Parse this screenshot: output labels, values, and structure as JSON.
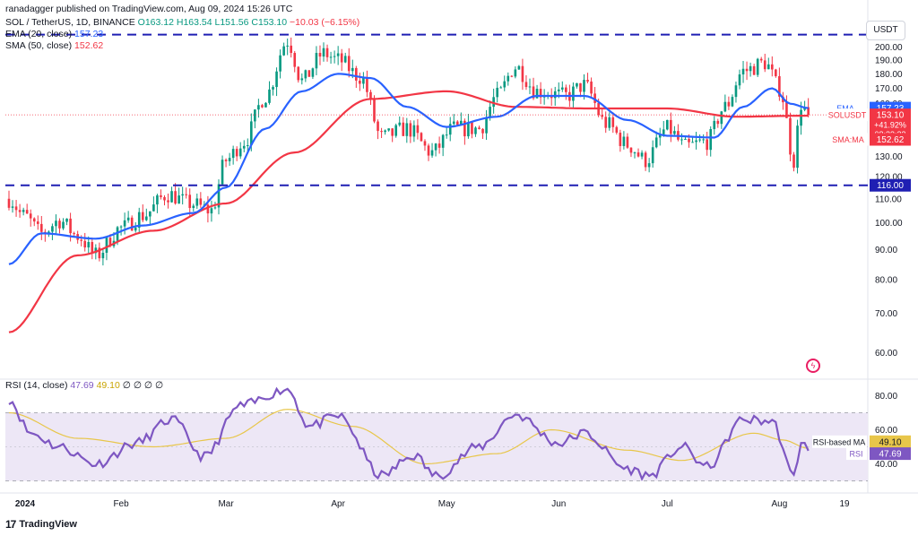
{
  "header": {
    "published": "ranadagger published on TradingView.com, Aug 09, 2024 15:26 UTC",
    "symbol": "SOL / TetherUS, 1D, BINANCE",
    "ohlc": {
      "o_label": "O",
      "o": "163.12",
      "h_label": "H",
      "h": "163.54",
      "l_label": "L",
      "l": "151.56",
      "c_label": "C",
      "c": "153.10",
      "change": "−10.03 (−6.15%)"
    },
    "ema_label": "EMA (20, close)",
    "ema_value": "157.23",
    "sma_label": "SMA (50, close)",
    "sma_value": "152.62"
  },
  "rsi_legend": {
    "label": "RSI (14, close)",
    "rsi": "47.69",
    "ma": "49.10",
    "extra": "∅ ∅ ∅ ∅"
  },
  "currency_button": "USDT",
  "footer": {
    "brand": "TradingView",
    "logo": "17"
  },
  "colors": {
    "up": "#089981",
    "down": "#f23645",
    "ema": "#2962ff",
    "sma": "#f23645",
    "rsi": "#7e57c2",
    "rsi_ma": "#e8c64a",
    "level_line": "#1f1fb3",
    "rsi_band": "#ede7f6"
  },
  "chart_data": [
    {
      "type": "candlestick",
      "title": "SOL / TetherUS, 1D, BINANCE",
      "x_ticks": [
        "2024",
        "Feb",
        "Mar",
        "Apr",
        "May",
        "Jun",
        "Jul",
        "Aug",
        "19"
      ],
      "y_ticks": [
        60,
        70,
        80,
        90,
        100,
        110,
        120,
        130,
        140,
        150,
        160,
        170,
        180,
        190,
        200
      ],
      "ylim": [
        55,
        212
      ],
      "scale": "log",
      "horizontal_levels": [
        {
          "value": 210,
          "label": ""
        },
        {
          "value": 116,
          "label": "116.00"
        }
      ],
      "price_labels": [
        {
          "name": "EMA",
          "value": "157.23"
        },
        {
          "name": "SOLUSDT",
          "value": "153.10",
          "change": "+41.92%",
          "countdown": "08:33:22"
        },
        {
          "name": "SMA:MA",
          "value": "152.62"
        }
      ],
      "close_anchors": [
        {
          "date": "2024-01-01",
          "close": 110
        },
        {
          "date": "2024-01-05",
          "close": 103
        },
        {
          "date": "2024-01-10",
          "close": 96
        },
        {
          "date": "2024-01-15",
          "close": 101
        },
        {
          "date": "2024-01-20",
          "close": 95
        },
        {
          "date": "2024-01-25",
          "close": 88
        },
        {
          "date": "2024-02-01",
          "close": 98
        },
        {
          "date": "2024-02-07",
          "close": 103
        },
        {
          "date": "2024-02-14",
          "close": 112
        },
        {
          "date": "2024-02-20",
          "close": 108
        },
        {
          "date": "2024-02-26",
          "close": 105
        },
        {
          "date": "2024-03-01",
          "close": 128
        },
        {
          "date": "2024-03-06",
          "close": 138
        },
        {
          "date": "2024-03-12",
          "close": 165
        },
        {
          "date": "2024-03-18",
          "close": 205
        },
        {
          "date": "2024-03-22",
          "close": 175
        },
        {
          "date": "2024-03-28",
          "close": 195
        },
        {
          "date": "2024-04-01",
          "close": 190
        },
        {
          "date": "2024-04-07",
          "close": 178
        },
        {
          "date": "2024-04-13",
          "close": 140
        },
        {
          "date": "2024-04-20",
          "close": 145
        },
        {
          "date": "2024-04-27",
          "close": 132
        },
        {
          "date": "2024-05-03",
          "close": 145
        },
        {
          "date": "2024-05-10",
          "close": 145
        },
        {
          "date": "2024-05-15",
          "close": 165
        },
        {
          "date": "2024-05-20",
          "close": 185
        },
        {
          "date": "2024-05-26",
          "close": 168
        },
        {
          "date": "2024-06-03",
          "close": 165
        },
        {
          "date": "2024-06-08",
          "close": 172
        },
        {
          "date": "2024-06-14",
          "close": 148
        },
        {
          "date": "2024-06-20",
          "close": 136
        },
        {
          "date": "2024-06-25",
          "close": 128
        },
        {
          "date": "2024-07-01",
          "close": 145
        },
        {
          "date": "2024-07-06",
          "close": 135
        },
        {
          "date": "2024-07-12",
          "close": 138
        },
        {
          "date": "2024-07-17",
          "close": 158
        },
        {
          "date": "2024-07-22",
          "close": 182
        },
        {
          "date": "2024-07-28",
          "close": 188
        },
        {
          "date": "2024-08-01",
          "close": 170
        },
        {
          "date": "2024-08-05",
          "close": 128
        },
        {
          "date": "2024-08-07",
          "close": 160
        },
        {
          "date": "2024-08-09",
          "close": 153
        }
      ],
      "ema20_anchors": [
        {
          "date": "2024-01-01",
          "value": 85
        },
        {
          "date": "2024-01-10",
          "value": 96
        },
        {
          "date": "2024-01-25",
          "value": 94
        },
        {
          "date": "2024-02-07",
          "value": 99
        },
        {
          "date": "2024-02-21",
          "value": 104
        },
        {
          "date": "2024-03-01",
          "value": 115
        },
        {
          "date": "2024-03-12",
          "value": 145
        },
        {
          "date": "2024-03-22",
          "value": 168
        },
        {
          "date": "2024-04-01",
          "value": 180
        },
        {
          "date": "2024-04-10",
          "value": 177
        },
        {
          "date": "2024-04-20",
          "value": 158
        },
        {
          "date": "2024-05-01",
          "value": 146
        },
        {
          "date": "2024-05-15",
          "value": 152
        },
        {
          "date": "2024-05-26",
          "value": 165
        },
        {
          "date": "2024-06-08",
          "value": 165
        },
        {
          "date": "2024-06-20",
          "value": 150
        },
        {
          "date": "2024-07-01",
          "value": 141
        },
        {
          "date": "2024-07-14",
          "value": 140
        },
        {
          "date": "2024-07-22",
          "value": 158
        },
        {
          "date": "2024-07-30",
          "value": 170
        },
        {
          "date": "2024-08-04",
          "value": 160
        },
        {
          "date": "2024-08-09",
          "value": 157.23
        }
      ],
      "sma50_anchors": [
        {
          "date": "2024-01-01",
          "value": 65
        },
        {
          "date": "2024-01-20",
          "value": 88
        },
        {
          "date": "2024-02-10",
          "value": 97
        },
        {
          "date": "2024-03-01",
          "value": 108
        },
        {
          "date": "2024-03-20",
          "value": 132
        },
        {
          "date": "2024-04-10",
          "value": 163
        },
        {
          "date": "2024-05-01",
          "value": 168
        },
        {
          "date": "2024-05-20",
          "value": 158
        },
        {
          "date": "2024-06-10",
          "value": 157
        },
        {
          "date": "2024-07-01",
          "value": 157
        },
        {
          "date": "2024-07-20",
          "value": 152
        },
        {
          "date": "2024-08-09",
          "value": 152.62
        }
      ]
    },
    {
      "type": "line",
      "title": "RSI (14, close)",
      "y_ticks": [
        40,
        60,
        80
      ],
      "ylim": [
        25,
        85
      ],
      "bands": [
        30,
        70
      ],
      "rsi_anchors": [
        {
          "date": "2024-01-01",
          "value": 78
        },
        {
          "date": "2024-01-07",
          "value": 58
        },
        {
          "date": "2024-01-15",
          "value": 50
        },
        {
          "date": "2024-01-25",
          "value": 40
        },
        {
          "date": "2024-02-05",
          "value": 52
        },
        {
          "date": "2024-02-15",
          "value": 66
        },
        {
          "date": "2024-02-24",
          "value": 44
        },
        {
          "date": "2024-03-05",
          "value": 74
        },
        {
          "date": "2024-03-18",
          "value": 84
        },
        {
          "date": "2024-03-24",
          "value": 62
        },
        {
          "date": "2024-04-01",
          "value": 68
        },
        {
          "date": "2024-04-13",
          "value": 33
        },
        {
          "date": "2024-04-22",
          "value": 45
        },
        {
          "date": "2024-04-28",
          "value": 33
        },
        {
          "date": "2024-05-10",
          "value": 50
        },
        {
          "date": "2024-05-20",
          "value": 69
        },
        {
          "date": "2024-06-01",
          "value": 52
        },
        {
          "date": "2024-06-08",
          "value": 58
        },
        {
          "date": "2024-06-20",
          "value": 37
        },
        {
          "date": "2024-06-26",
          "value": 33
        },
        {
          "date": "2024-07-05",
          "value": 50
        },
        {
          "date": "2024-07-12",
          "value": 38
        },
        {
          "date": "2024-07-22",
          "value": 66
        },
        {
          "date": "2024-07-30",
          "value": 65
        },
        {
          "date": "2024-08-05",
          "value": 32
        },
        {
          "date": "2024-08-07",
          "value": 54
        },
        {
          "date": "2024-08-09",
          "value": 47.69
        }
      ],
      "ma_anchors": [
        {
          "date": "2024-01-01",
          "value": 70
        },
        {
          "date": "2024-01-20",
          "value": 55
        },
        {
          "date": "2024-02-10",
          "value": 50
        },
        {
          "date": "2024-03-01",
          "value": 55
        },
        {
          "date": "2024-03-18",
          "value": 72
        },
        {
          "date": "2024-04-05",
          "value": 62
        },
        {
          "date": "2024-04-25",
          "value": 40
        },
        {
          "date": "2024-05-15",
          "value": 46
        },
        {
          "date": "2024-05-30",
          "value": 60
        },
        {
          "date": "2024-06-20",
          "value": 48
        },
        {
          "date": "2024-07-05",
          "value": 42
        },
        {
          "date": "2024-07-25",
          "value": 58
        },
        {
          "date": "2024-08-02",
          "value": 54
        },
        {
          "date": "2024-08-09",
          "value": 49.1
        }
      ],
      "value_labels": [
        {
          "name": "RSI-based MA",
          "value": "49.10"
        },
        {
          "name": "RSI",
          "value": "47.69"
        }
      ]
    }
  ]
}
